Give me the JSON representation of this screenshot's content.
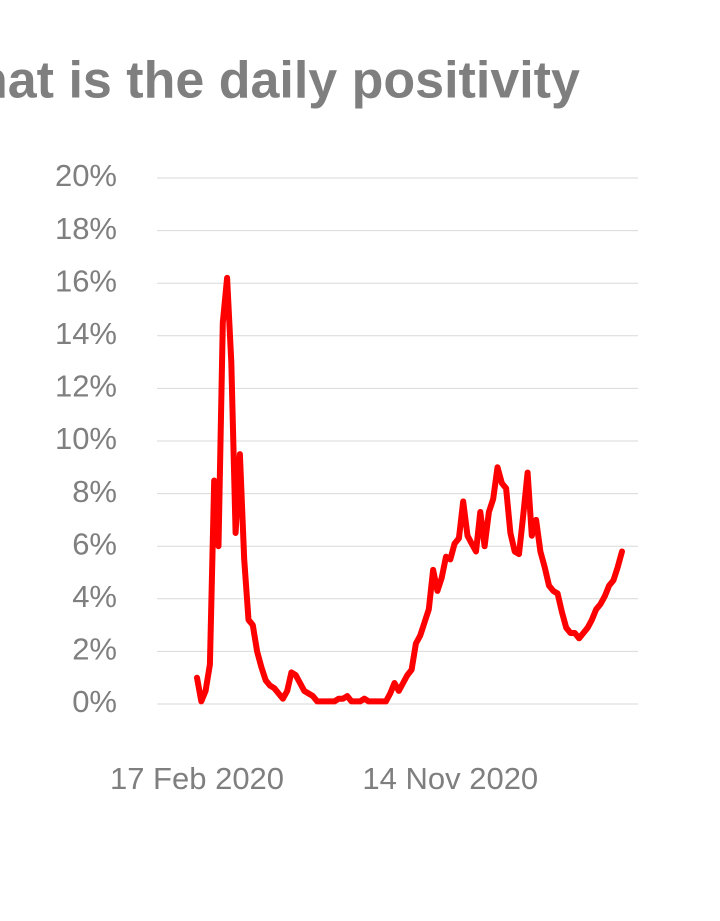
{
  "chart_data": {
    "type": "line",
    "title": "hat is the daily positivity",
    "categories": [
      "17 Feb 2020",
      null,
      null,
      null,
      null,
      null,
      null,
      null,
      null,
      null,
      null,
      null,
      null,
      null,
      null,
      null,
      null,
      null,
      null,
      null,
      null,
      null,
      null,
      null,
      null,
      null,
      null,
      null,
      null,
      null,
      null,
      null,
      null,
      null,
      null,
      null,
      null,
      null,
      null,
      null,
      null,
      null,
      null,
      null,
      null,
      null,
      null,
      null,
      null,
      null,
      null,
      null,
      null,
      null,
      null,
      null,
      null,
      null,
      null,
      "14 Nov 2020",
      null,
      null,
      null,
      null,
      null,
      null,
      null,
      null,
      null,
      null,
      null,
      null,
      null,
      null,
      null,
      null,
      null,
      null,
      null,
      null,
      null,
      null,
      null,
      null,
      null,
      null,
      null,
      null,
      null,
      null,
      null,
      null,
      null,
      null,
      null,
      null,
      null,
      null,
      null,
      null
    ],
    "values": [
      1.0,
      0.1,
      0.5,
      1.5,
      8.5,
      6.0,
      14.5,
      16.2,
      13.0,
      6.5,
      9.5,
      5.5,
      3.2,
      3.0,
      2.0,
      1.4,
      0.9,
      0.7,
      0.6,
      0.4,
      0.2,
      0.5,
      1.2,
      1.1,
      0.8,
      0.5,
      0.4,
      0.3,
      0.1,
      0.1,
      0.1,
      0.1,
      0.1,
      0.2,
      0.2,
      0.3,
      0.1,
      0.1,
      0.1,
      0.2,
      0.1,
      0.1,
      0.1,
      0.1,
      0.1,
      0.4,
      0.8,
      0.5,
      0.8,
      1.1,
      1.3,
      2.3,
      2.6,
      3.1,
      3.6,
      5.1,
      4.3,
      4.8,
      5.6,
      5.5,
      6.1,
      6.3,
      7.7,
      6.4,
      6.1,
      5.8,
      7.3,
      6.0,
      7.3,
      7.8,
      9.0,
      8.4,
      8.2,
      6.5,
      5.8,
      5.7,
      7.2,
      8.8,
      6.4,
      7.0,
      5.8,
      5.2,
      4.5,
      4.3,
      4.2,
      3.5,
      2.9,
      2.7,
      2.7,
      2.5,
      2.7,
      2.9,
      3.2,
      3.6,
      3.8,
      4.1,
      4.5,
      4.7,
      5.2,
      5.8
    ],
    "color": "#ff0000",
    "ylim": [
      0,
      20
    ],
    "yticks": [
      {
        "value": 0,
        "label": "0%"
      },
      {
        "value": 2,
        "label": "2%"
      },
      {
        "value": 4,
        "label": "4%"
      },
      {
        "value": 6,
        "label": "6%"
      },
      {
        "value": 8,
        "label": "8%"
      },
      {
        "value": 10,
        "label": "10%"
      },
      {
        "value": 12,
        "label": "12%"
      },
      {
        "value": 14,
        "label": "14%"
      },
      {
        "value": 16,
        "label": "16%"
      },
      {
        "value": 18,
        "label": "18%"
      },
      {
        "value": 20,
        "label": "20%"
      }
    ],
    "grid": true
  }
}
